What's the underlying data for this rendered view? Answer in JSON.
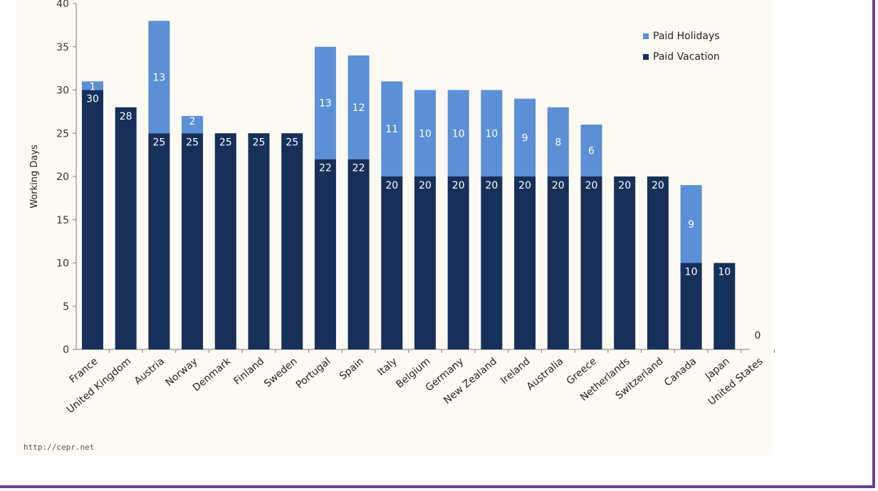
{
  "source": "http://cepr.net",
  "colors": {
    "holidays": "#5b8fd6",
    "vacation": "#16305a",
    "axis": "#7a7a7a"
  },
  "chart_data": {
    "type": "bar",
    "stacked": true,
    "ylabel": "Working Days",
    "ylim": [
      0,
      40
    ],
    "yticks": [
      0,
      5,
      10,
      15,
      20,
      25,
      30,
      35,
      40
    ],
    "categories": [
      "France",
      "United Kingdom",
      "Austria",
      "Norway",
      "Denmark",
      "Finland",
      "Sweden",
      "Portugal",
      "Spain",
      "Italy",
      "Belgium",
      "Germany",
      "New Zealand",
      "Ireland",
      "Australia",
      "Greece",
      "Netherlands",
      "Switzerland",
      "Canada",
      "Japan",
      "United States"
    ],
    "series": [
      {
        "name": "Paid Vacation",
        "values": [
          30,
          28,
          25,
          25,
          25,
          25,
          25,
          22,
          22,
          20,
          20,
          20,
          20,
          20,
          20,
          20,
          20,
          20,
          10,
          10,
          0
        ]
      },
      {
        "name": "Paid Holidays",
        "values": [
          1,
          0,
          13,
          2,
          0,
          0,
          0,
          13,
          12,
          11,
          10,
          10,
          10,
          9,
          8,
          6,
          0,
          0,
          9,
          0,
          0
        ]
      }
    ],
    "legend": {
      "position": "top-right",
      "order": [
        "Paid Holidays",
        "Paid Vacation"
      ]
    }
  }
}
